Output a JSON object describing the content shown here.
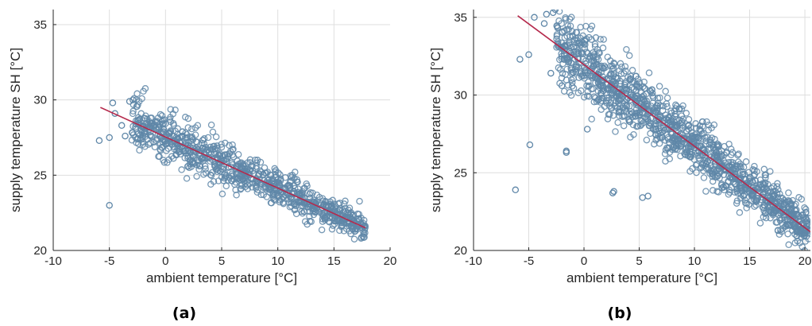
{
  "colors": {
    "marker": "#5f87a8",
    "fit_line": "#b5294c",
    "grid": "#dedede",
    "axis": "#262626"
  },
  "chart_data": [
    {
      "type": "scatter",
      "caption": "(a)",
      "xlabel": "ambient temperature [°C]",
      "ylabel": "supply temperature SH [°C]",
      "xlim": [
        -10,
        20
      ],
      "ylim": [
        20,
        36
      ],
      "xticks": [
        -10,
        -5,
        0,
        5,
        10,
        15,
        20
      ],
      "yticks": [
        20,
        25,
        30,
        35
      ],
      "grid": true,
      "cloud": {
        "x_range": [
          -3,
          17.8
        ],
        "fit": [
          [
            -5.8,
            29.5
          ],
          [
            17.8,
            21.5
          ]
        ],
        "noise": 0.75,
        "count": 900,
        "seed": 7
      },
      "fit_line": {
        "x": [
          -5.8,
          17.8
        ],
        "y": [
          29.5,
          21.5
        ]
      },
      "outliers": [
        {
          "x": -5.0,
          "y": 23.0
        },
        {
          "x": -5.9,
          "y": 27.3
        },
        {
          "x": -4.7,
          "y": 29.8
        },
        {
          "x": -4.5,
          "y": 29.1
        },
        {
          "x": -3.6,
          "y": 27.6
        },
        {
          "x": -3.2,
          "y": 29.9
        },
        {
          "x": -2.9,
          "y": 30.0
        },
        {
          "x": -3.9,
          "y": 28.3
        },
        {
          "x": -5.0,
          "y": 27.5
        }
      ]
    },
    {
      "type": "scatter",
      "caption": "(b)",
      "xlabel": "ambient temperature [°C]",
      "ylabel": "supply temperature SH [°C]",
      "xlim": [
        -10,
        20.5
      ],
      "ylim": [
        20,
        35.5
      ],
      "xticks": [
        -10,
        -5,
        0,
        5,
        10,
        15,
        20
      ],
      "yticks": [
        20,
        25,
        30,
        35
      ],
      "grid": true,
      "cloud": {
        "x_range": [
          -2.5,
          20.5
        ],
        "fit": [
          [
            -6.0,
            35.1
          ],
          [
            20.5,
            21.2
          ]
        ],
        "noise": 1.1,
        "count": 1300,
        "seed": 13
      },
      "fit_line": {
        "x": [
          -6.0,
          20.5
        ],
        "y": [
          35.1,
          21.2
        ]
      },
      "outliers": [
        {
          "x": -6.2,
          "y": 23.9
        },
        {
          "x": -4.9,
          "y": 26.8
        },
        {
          "x": -1.6,
          "y": 26.4
        },
        {
          "x": -1.6,
          "y": 26.3
        },
        {
          "x": 2.7,
          "y": 23.8
        },
        {
          "x": 2.6,
          "y": 23.7
        },
        {
          "x": 5.3,
          "y": 23.4
        },
        {
          "x": 5.8,
          "y": 23.5
        },
        {
          "x": -5.8,
          "y": 32.3
        },
        {
          "x": -5.0,
          "y": 32.6
        },
        {
          "x": -4.5,
          "y": 35.0
        },
        {
          "x": -3.4,
          "y": 35.2
        },
        {
          "x": -2.8,
          "y": 35.3
        },
        {
          "x": -2.6,
          "y": 35.5
        },
        {
          "x": -3.6,
          "y": 34.6
        },
        {
          "x": -3.0,
          "y": 31.4
        },
        {
          "x": -2.0,
          "y": 30.6
        },
        {
          "x": 0.3,
          "y": 27.8
        }
      ]
    }
  ]
}
